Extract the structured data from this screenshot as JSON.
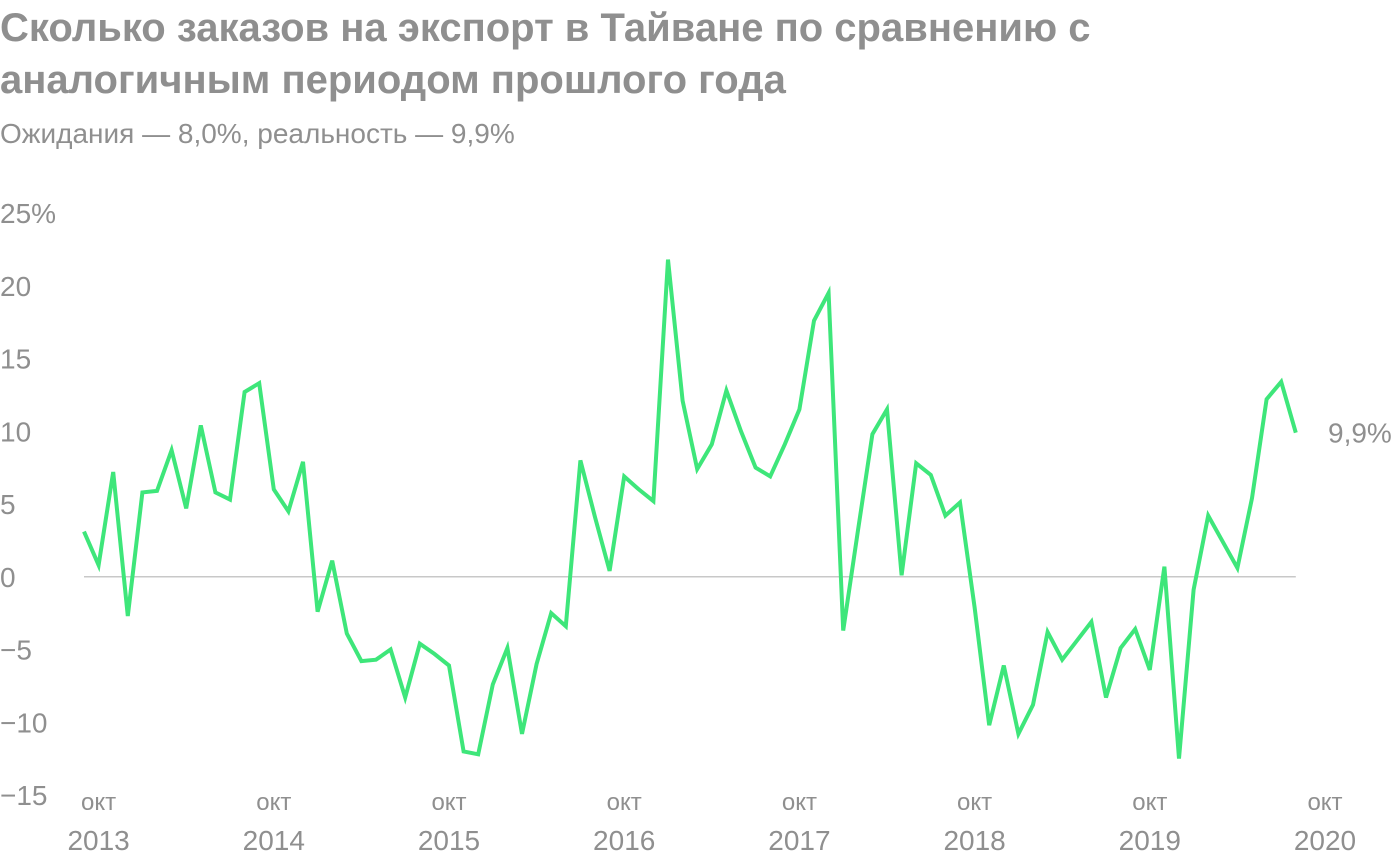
{
  "title": "Сколько заказов на экспорт в Тайване по сравнению с аналогичным периодом прошлого года",
  "subtitle": "Ожидания — 8,0%, реальность — 9,9%",
  "chart_data": {
    "type": "line",
    "title": "Сколько заказов на экспорт в Тайване по сравнению с аналогичным периодом прошлого года",
    "subtitle": "Ожидания — 8,0%, реальность — 9,9%",
    "ylim": [
      -15,
      25
    ],
    "y_ticks": [
      {
        "value": 25,
        "label": "25%"
      },
      {
        "value": 20,
        "label": "20"
      },
      {
        "value": 15,
        "label": "15"
      },
      {
        "value": 10,
        "label": "10"
      },
      {
        "value": 5,
        "label": "5"
      },
      {
        "value": 0,
        "label": "0"
      },
      {
        "value": -5,
        "label": "−5"
      },
      {
        "value": -10,
        "label": "−10"
      },
      {
        "value": -15,
        "label": "−15"
      }
    ],
    "x_ticks": [
      {
        "month": "окт",
        "year": "2013"
      },
      {
        "month": "окт",
        "year": "2014"
      },
      {
        "month": "окт",
        "year": "2015"
      },
      {
        "month": "окт",
        "year": "2016"
      },
      {
        "month": "окт",
        "year": "2017"
      },
      {
        "month": "окт",
        "year": "2018"
      },
      {
        "month": "окт",
        "year": "2019"
      },
      {
        "month": "окт",
        "year": "2020"
      }
    ],
    "zero_line": true,
    "grid": false,
    "line_color": "#3ee67a",
    "axis_color": "#c8c8c8",
    "text_color": "#8f8f8f",
    "end_label": "9,9%",
    "series": [
      {
        "start": "2013-09",
        "values": [
          3.1,
          0.8,
          7.2,
          -2.7,
          5.8,
          5.9,
          8.7,
          4.7,
          10.4,
          5.8,
          5.3,
          12.7,
          13.3,
          6.0,
          4.5,
          7.9,
          -2.4,
          1.1,
          -3.9,
          -5.8,
          -5.7,
          -5.0,
          -8.3,
          -4.6,
          -5.3,
          -6.1,
          -12.0,
          -12.2,
          -7.4,
          -4.9,
          -10.8,
          -6.0,
          -2.5,
          -3.4,
          8.0,
          4.1,
          0.4,
          6.9,
          6.0,
          5.2,
          21.8,
          12.1,
          7.4,
          9.1,
          12.8,
          10.0,
          7.5,
          6.9,
          9.1,
          11.5,
          17.6,
          19.5,
          -3.7,
          3.1,
          9.8,
          11.5,
          0.1,
          7.8,
          7.0,
          4.2,
          5.1,
          -2.1,
          -10.2,
          -6.1,
          -10.8,
          -8.8,
          -3.8,
          -5.7,
          -4.4,
          -3.1,
          -8.3,
          -4.9,
          -3.6,
          -6.4,
          0.7,
          -12.5,
          -0.9,
          4.2,
          2.4,
          0.6,
          5.4,
          12.2,
          13.4,
          9.9
        ]
      }
    ]
  }
}
